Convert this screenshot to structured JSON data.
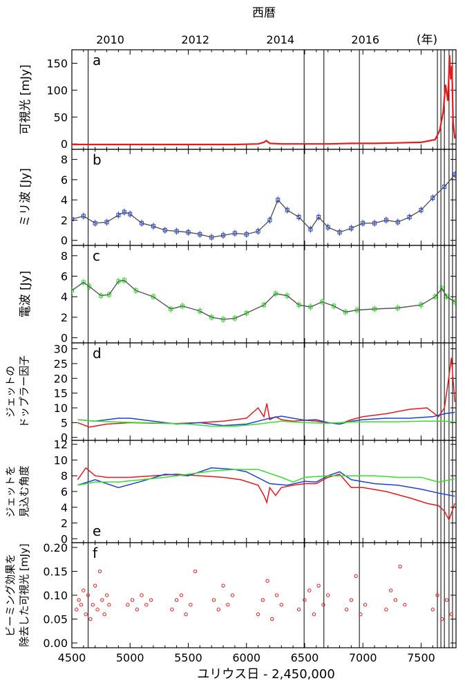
{
  "figure": {
    "top_axis_title": "西暦",
    "top_axis_ticks": [
      "2010",
      "2012",
      "2014",
      "2016"
    ],
    "top_axis_unit": "(年)",
    "xlabel": "ユリウス日 - 2,450,000",
    "x_ticks": [
      "4500",
      "5000",
      "5500",
      "6000",
      "6500",
      "7000",
      "7500"
    ],
    "vertical_lines_jd": [
      4640,
      6495,
      6665,
      6970,
      7640,
      7670,
      7700,
      7740,
      7770
    ],
    "colors": {
      "red": "#e41a1c",
      "blue": "#1f3fd4",
      "green": "#33e02a",
      "gray": "#555555",
      "frame": "#000000"
    }
  },
  "chart_data": [
    {
      "type": "line",
      "panel": "a",
      "ylabel": "可視光 [mJy]",
      "ylim": [
        -10,
        175
      ],
      "yticks": [
        "0",
        "50",
        "100",
        "150"
      ],
      "series": [
        {
          "color": "red",
          "x": [
            4500,
            4700,
            4900,
            5100,
            5300,
            5500,
            5700,
            5900,
            6100,
            6150,
            6170,
            6200,
            6300,
            6500,
            6700,
            6900,
            7100,
            7300,
            7500,
            7620,
            7660,
            7690,
            7710,
            7730,
            7745,
            7755,
            7765,
            7775,
            7790
          ],
          "y": [
            -1,
            -1,
            -1,
            -1,
            -1,
            -1,
            -1,
            -1,
            0,
            3,
            6,
            1,
            0,
            0,
            0,
            1,
            1,
            2,
            3,
            8,
            25,
            60,
            110,
            80,
            165,
            120,
            145,
            40,
            10
          ]
        }
      ]
    },
    {
      "type": "line",
      "panel": "b",
      "ylabel": "ミリ波 [Jy]",
      "ylim": [
        -0.5,
        9
      ],
      "yticks": [
        "0",
        "2",
        "4",
        "6",
        "8"
      ],
      "series": [
        {
          "color": "gray",
          "x": [
            4500,
            4600,
            4700,
            4800,
            4900,
            4950,
            5000,
            5100,
            5200,
            5300,
            5400,
            5500,
            5600,
            5700,
            5800,
            5900,
            6000,
            6100,
            6200,
            6270,
            6350,
            6450,
            6550,
            6620,
            6700,
            6800,
            6900,
            7000,
            7100,
            7200,
            7300,
            7400,
            7500,
            7600,
            7700,
            7790
          ],
          "y": [
            2.1,
            2.4,
            1.7,
            1.8,
            2.5,
            2.8,
            2.6,
            1.7,
            1.4,
            1.0,
            0.9,
            0.8,
            0.6,
            0.3,
            0.5,
            0.7,
            0.6,
            0.9,
            2.0,
            4.0,
            3.0,
            2.3,
            1.1,
            2.3,
            1.3,
            0.8,
            1.2,
            1.7,
            1.7,
            2.0,
            1.8,
            2.3,
            3.0,
            4.2,
            5.3,
            6.5
          ]
        }
      ]
    },
    {
      "type": "line",
      "panel": "c",
      "ylabel": "電波 [Jy]",
      "ylim": [
        -0.5,
        9
      ],
      "yticks": [
        "0",
        "2",
        "4",
        "6",
        "8"
      ],
      "series": [
        {
          "color": "gray",
          "x": [
            4500,
            4600,
            4650,
            4750,
            4820,
            4900,
            4950,
            5050,
            5200,
            5350,
            5450,
            5600,
            5700,
            5800,
            5900,
            6000,
            6150,
            6250,
            6350,
            6450,
            6550,
            6650,
            6750,
            6850,
            6950,
            7100,
            7300,
            7500,
            7620,
            7680,
            7720,
            7790
          ],
          "y": [
            4.6,
            5.4,
            5.0,
            4.1,
            4.2,
            5.5,
            5.6,
            4.6,
            4.0,
            2.8,
            3.1,
            2.6,
            2.0,
            1.8,
            1.9,
            2.4,
            3.2,
            4.3,
            4.1,
            3.2,
            3.0,
            3.5,
            3.1,
            2.5,
            2.7,
            2.8,
            2.9,
            3.2,
            4.0,
            4.8,
            4.0,
            3.5
          ]
        }
      ]
    },
    {
      "type": "line",
      "panel": "d",
      "ylabel": "ジェットの\nドップラー因子",
      "ylim": [
        -1,
        32
      ],
      "yticks": [
        "0",
        "5",
        "10",
        "15",
        "20",
        "25",
        "30"
      ],
      "series": [
        {
          "color": "red",
          "x": [
            4550,
            4650,
            4800,
            5000,
            5200,
            5400,
            5600,
            5800,
            6000,
            6100,
            6150,
            6175,
            6200,
            6250,
            6300,
            6400,
            6500,
            6600,
            6700,
            6800,
            6900,
            7000,
            7200,
            7400,
            7550,
            7650,
            7700,
            7730,
            7760,
            7790
          ],
          "y": [
            5,
            3.5,
            4.5,
            5,
            4.8,
            4.7,
            5,
            5.5,
            6.5,
            10,
            7,
            11.5,
            6,
            7,
            6,
            5.5,
            5.8,
            5.5,
            5,
            4.5,
            6,
            7,
            8,
            9.5,
            10,
            7,
            10,
            18,
            27,
            12
          ]
        },
        {
          "color": "blue",
          "x": [
            4550,
            4700,
            4900,
            5000,
            5200,
            5400,
            5600,
            5800,
            6000,
            6200,
            6300,
            6400,
            6500,
            6600,
            6700,
            6800,
            6900,
            7000,
            7200,
            7400,
            7600,
            7700,
            7790
          ],
          "y": [
            6,
            5.5,
            6.5,
            6.5,
            5.5,
            4.5,
            5,
            4,
            4.5,
            6.5,
            7.2,
            6.5,
            5.8,
            6,
            5,
            4.5,
            5.5,
            6,
            6.5,
            6.5,
            7,
            8,
            8.5
          ]
        },
        {
          "color": "green",
          "x": [
            4550,
            4700,
            4900,
            5100,
            5300,
            5500,
            5700,
            5900,
            6100,
            6300,
            6500,
            6700,
            6900,
            7100,
            7300,
            7500,
            7700,
            7790
          ],
          "y": [
            6,
            5.5,
            5.2,
            5,
            4.8,
            4.5,
            3.8,
            3.8,
            4.5,
            5.5,
            5,
            4.8,
            5.2,
            5.3,
            5.3,
            5.5,
            5.5,
            5.2
          ]
        }
      ]
    },
    {
      "type": "line",
      "panel": "e",
      "ylabel": "ジェットを\n見込む角度",
      "ylim": [
        -0.5,
        12.5
      ],
      "yticks": [
        "0",
        "2",
        "4",
        "6",
        "8",
        "10",
        "12"
      ],
      "series": [
        {
          "color": "red",
          "x": [
            4550,
            4620,
            4700,
            4800,
            5000,
            5200,
            5400,
            5600,
            5800,
            5950,
            6100,
            6150,
            6175,
            6200,
            6250,
            6300,
            6400,
            6500,
            6600,
            6700,
            6800,
            6900,
            7000,
            7200,
            7400,
            7550,
            7650,
            7700,
            7740,
            7790
          ],
          "y": [
            7.5,
            9,
            8,
            7.8,
            7.8,
            8,
            8.2,
            8,
            7.8,
            7.5,
            6.8,
            5.5,
            4.6,
            6.5,
            5.5,
            6.5,
            6.8,
            7,
            7,
            7.8,
            8.2,
            6.5,
            6.5,
            6,
            5.2,
            4.5,
            4.2,
            3.5,
            2.4,
            4.5
          ]
        },
        {
          "color": "blue",
          "x": [
            4550,
            4700,
            4900,
            5100,
            5300,
            5500,
            5700,
            5900,
            6000,
            6200,
            6350,
            6500,
            6600,
            6700,
            6800,
            6900,
            7100,
            7300,
            7500,
            7650,
            7790
          ],
          "y": [
            6.8,
            7.5,
            6.5,
            7.3,
            8.2,
            8,
            9,
            8.8,
            8.5,
            7,
            6.8,
            7.3,
            7.2,
            8,
            8.5,
            7.5,
            7,
            6.8,
            6.3,
            5.8,
            5.4
          ]
        },
        {
          "color": "green",
          "x": [
            4550,
            4700,
            4900,
            5100,
            5300,
            5500,
            5700,
            5900,
            6100,
            6300,
            6400,
            6500,
            6700,
            6900,
            7100,
            7300,
            7500,
            7650,
            7790
          ],
          "y": [
            6.8,
            7.2,
            7.2,
            7.5,
            7.8,
            8.2,
            8.6,
            8.8,
            8.8,
            7.8,
            7.2,
            7.8,
            8,
            8,
            8,
            7.8,
            7.8,
            7.2,
            7.6
          ]
        }
      ]
    },
    {
      "type": "scatter",
      "panel": "f",
      "ylabel": "ビーミング効果を\n除去した可視光 [mJy]",
      "ylim": [
        -0.01,
        0.21
      ],
      "yticks": [
        "0.00",
        "0.05",
        "0.10",
        "0.15",
        "0.20"
      ],
      "series": [
        {
          "color": "red",
          "x": [
            4540,
            4560,
            4580,
            4600,
            4620,
            4640,
            4660,
            4680,
            4700,
            4720,
            4740,
            4760,
            4780,
            4800,
            4820,
            4980,
            5020,
            5060,
            5100,
            5140,
            5180,
            5360,
            5400,
            5440,
            5480,
            5520,
            5560,
            5720,
            5760,
            5800,
            5840,
            5880,
            6100,
            6140,
            6180,
            6220,
            6260,
            6300,
            6450,
            6500,
            6540,
            6580,
            6620,
            6660,
            6700,
            6860,
            6900,
            6940,
            6980,
            7020,
            7200,
            7240,
            7280,
            7320,
            7360,
            7600,
            7640,
            7680,
            7720,
            7760
          ],
          "y": [
            0.07,
            0.09,
            0.08,
            0.11,
            0.06,
            0.1,
            0.05,
            0.08,
            0.12,
            0.07,
            0.15,
            0.09,
            0.06,
            0.1,
            0.08,
            0.08,
            0.09,
            0.07,
            0.1,
            0.08,
            0.09,
            0.07,
            0.09,
            0.1,
            0.06,
            0.08,
            0.15,
            0.09,
            0.07,
            0.12,
            0.08,
            0.1,
            0.06,
            0.09,
            0.13,
            0.05,
            0.1,
            0.08,
            0.07,
            0.09,
            0.11,
            0.06,
            0.12,
            0.08,
            0.1,
            0.07,
            0.09,
            0.14,
            0.06,
            0.08,
            0.07,
            0.11,
            0.09,
            0.16,
            0.08,
            0.07,
            0.1,
            0.05,
            0.09,
            0.06
          ]
        }
      ]
    }
  ]
}
